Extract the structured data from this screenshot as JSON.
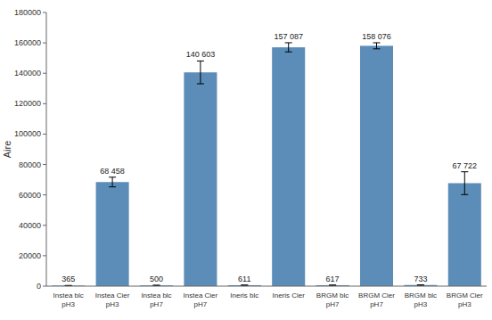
{
  "chart_data": {
    "type": "bar",
    "categories": [
      "Instea blc\npH3",
      "Instea Cier\npH3",
      "Instea blc\npH7",
      "Instea Cier\npH7",
      "Ineris blc\n",
      "Ineris Cier\n",
      "BRGM blc\npH7",
      "BRGM Cier\npH7",
      "BRGM blc\npH3",
      "BRGM Cier\npH3"
    ],
    "values": [
      365,
      68458,
      500,
      140603,
      611,
      157087,
      617,
      158076,
      733,
      67722
    ],
    "errors": [
      50,
      3200,
      50,
      7500,
      50,
      3000,
      50,
      2000,
      50,
      7500
    ],
    "value_labels": [
      "365",
      "68 458",
      "500",
      "140 603",
      "611",
      "157 087",
      "617",
      "158 076",
      "733",
      "67 722"
    ],
    "data_labels": true,
    "color": "#5B8DB8",
    "ylabel": "Aire",
    "ylim": [
      0,
      180000
    ],
    "yticks": [
      0,
      20000,
      40000,
      60000,
      80000,
      100000,
      120000,
      140000,
      160000,
      180000
    ],
    "grid": false
  }
}
